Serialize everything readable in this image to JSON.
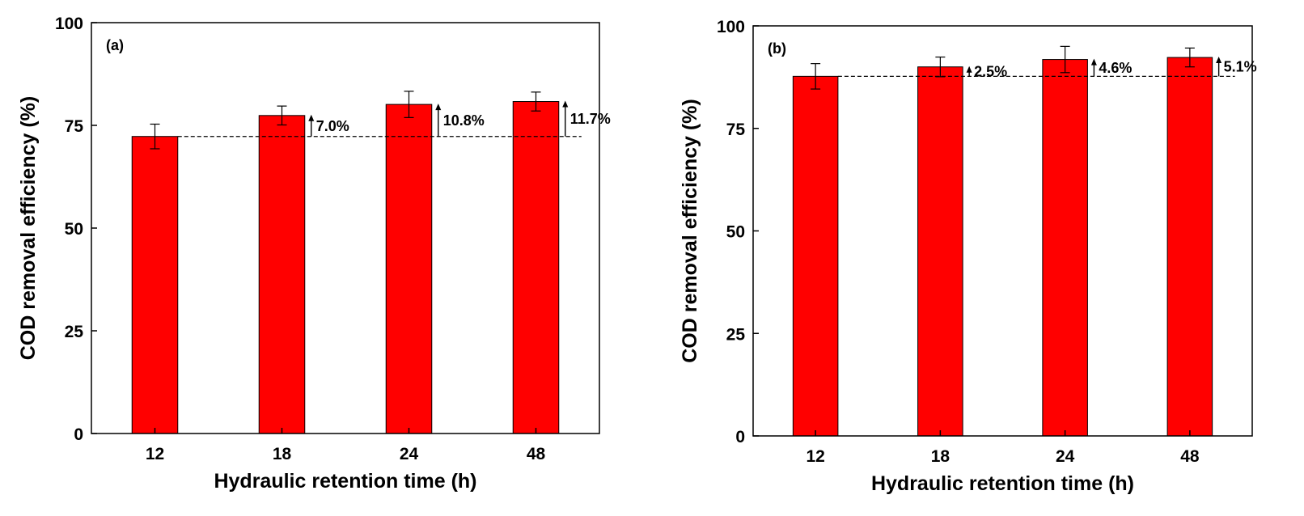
{
  "chart_data": [
    {
      "type": "bar",
      "panel_label": "(a)",
      "categories": [
        "12",
        "18",
        "24",
        "48"
      ],
      "values": [
        72.3,
        77.4,
        80.1,
        80.8
      ],
      "errors": [
        3.0,
        2.3,
        3.2,
        2.3
      ],
      "baseline": 72.3,
      "increases": [
        "",
        "7.0%",
        "10.8%",
        "11.7%"
      ],
      "xlabel": "Hydraulic retention time (h)",
      "ylabel": "COD removal efficiency (%)",
      "ylim": [
        0,
        100
      ],
      "yticks": [
        0,
        25,
        50,
        75,
        100
      ],
      "bar_color": "#ff0000",
      "grid": false
    },
    {
      "type": "bar",
      "panel_label": "(b)",
      "categories": [
        "12",
        "18",
        "24",
        "48"
      ],
      "values": [
        87.7,
        90.0,
        91.8,
        92.3
      ],
      "errors": [
        3.1,
        2.4,
        3.2,
        2.3
      ],
      "baseline": 87.7,
      "increases": [
        "",
        "2.5%",
        "4.6%",
        "5.1%"
      ],
      "xlabel": "Hydraulic retention time (h)",
      "ylabel": "COD removal efficiency (%)",
      "ylim": [
        0,
        100
      ],
      "yticks": [
        0,
        25,
        50,
        75,
        100
      ],
      "bar_color": "#ff0000",
      "grid": false
    }
  ]
}
